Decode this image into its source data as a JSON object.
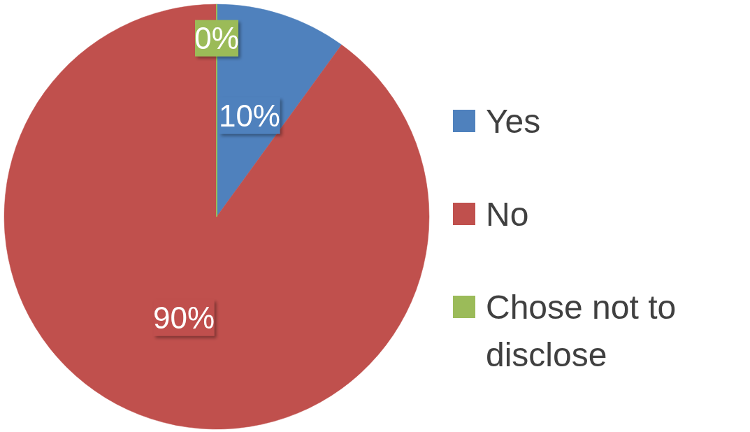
{
  "chart_data": {
    "type": "pie",
    "categories": [
      "Yes",
      "No",
      "Chose not to disclose"
    ],
    "values": [
      10,
      90,
      0
    ],
    "colors": [
      "#4f81bd",
      "#c0504d",
      "#9bbb59"
    ],
    "value_labels": [
      "10%",
      "90%",
      "0%"
    ],
    "legend": "right"
  }
}
